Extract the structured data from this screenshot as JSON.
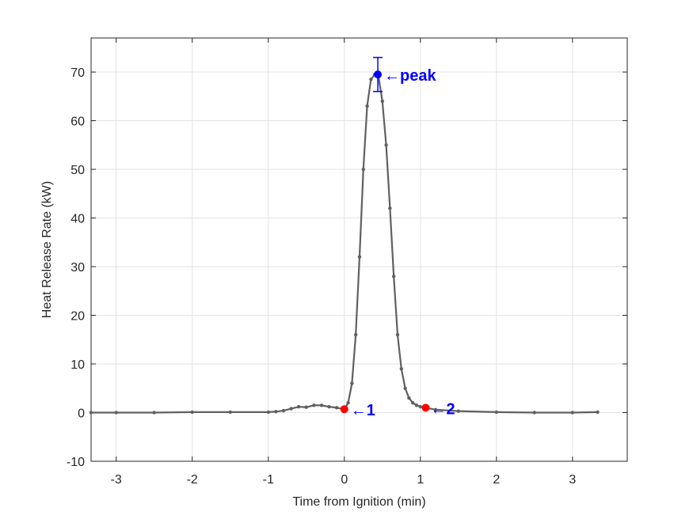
{
  "chart_data": {
    "type": "line",
    "xlabel": "Time from Ignition (min)",
    "ylabel": "Heat Release Rate (kW)",
    "xlim": [
      -3.33,
      3.72
    ],
    "ylim": [
      -10,
      77
    ],
    "xticks": [
      -3,
      -2,
      -1,
      0,
      1,
      2,
      3
    ],
    "yticks": [
      -10,
      0,
      10,
      20,
      30,
      40,
      50,
      60,
      70
    ],
    "grid": true,
    "series": [
      {
        "color": "#606060",
        "x": [
          -3.33,
          -3.0,
          -2.5,
          -2.0,
          -1.5,
          -1.0,
          -0.9,
          -0.8,
          -0.7,
          -0.6,
          -0.5,
          -0.4,
          -0.3,
          -0.2,
          -0.1,
          0.0,
          0.05,
          0.1,
          0.15,
          0.2,
          0.25,
          0.3,
          0.35,
          0.4,
          0.45,
          0.5,
          0.55,
          0.6,
          0.65,
          0.7,
          0.75,
          0.8,
          0.85,
          0.9,
          0.95,
          1.0,
          1.07,
          1.2,
          1.5,
          2.0,
          2.5,
          3.0,
          3.33
        ],
        "y": [
          0.0,
          0.0,
          0.0,
          0.1,
          0.1,
          0.1,
          0.2,
          0.4,
          0.8,
          1.2,
          1.1,
          1.5,
          1.5,
          1.2,
          1.0,
          0.7,
          2.0,
          6.0,
          16.0,
          32.0,
          50.0,
          63.0,
          68.5,
          69.5,
          69.0,
          64.0,
          55.0,
          42.0,
          28.0,
          16.0,
          9.0,
          5.0,
          3.0,
          2.0,
          1.5,
          1.2,
          1.0,
          0.6,
          0.3,
          0.1,
          0.0,
          0.0,
          0.1
        ]
      }
    ],
    "markers": [
      {
        "label": "1",
        "x": 0.0,
        "y": 0.7,
        "color": "#ff0000"
      },
      {
        "label": "2",
        "x": 1.07,
        "y": 1.0,
        "color": "#ff0000"
      },
      {
        "label": "peak",
        "x": 0.44,
        "y": 69.5,
        "color": "#0000ff",
        "error_low": 66.0,
        "error_high": 73.0
      }
    ],
    "annotations": [
      {
        "text": "←peak",
        "color": "#0000ff"
      },
      {
        "text": "←1",
        "color": "#0000ff"
      },
      {
        "text": "←2",
        "color": "#0000ff"
      }
    ]
  }
}
